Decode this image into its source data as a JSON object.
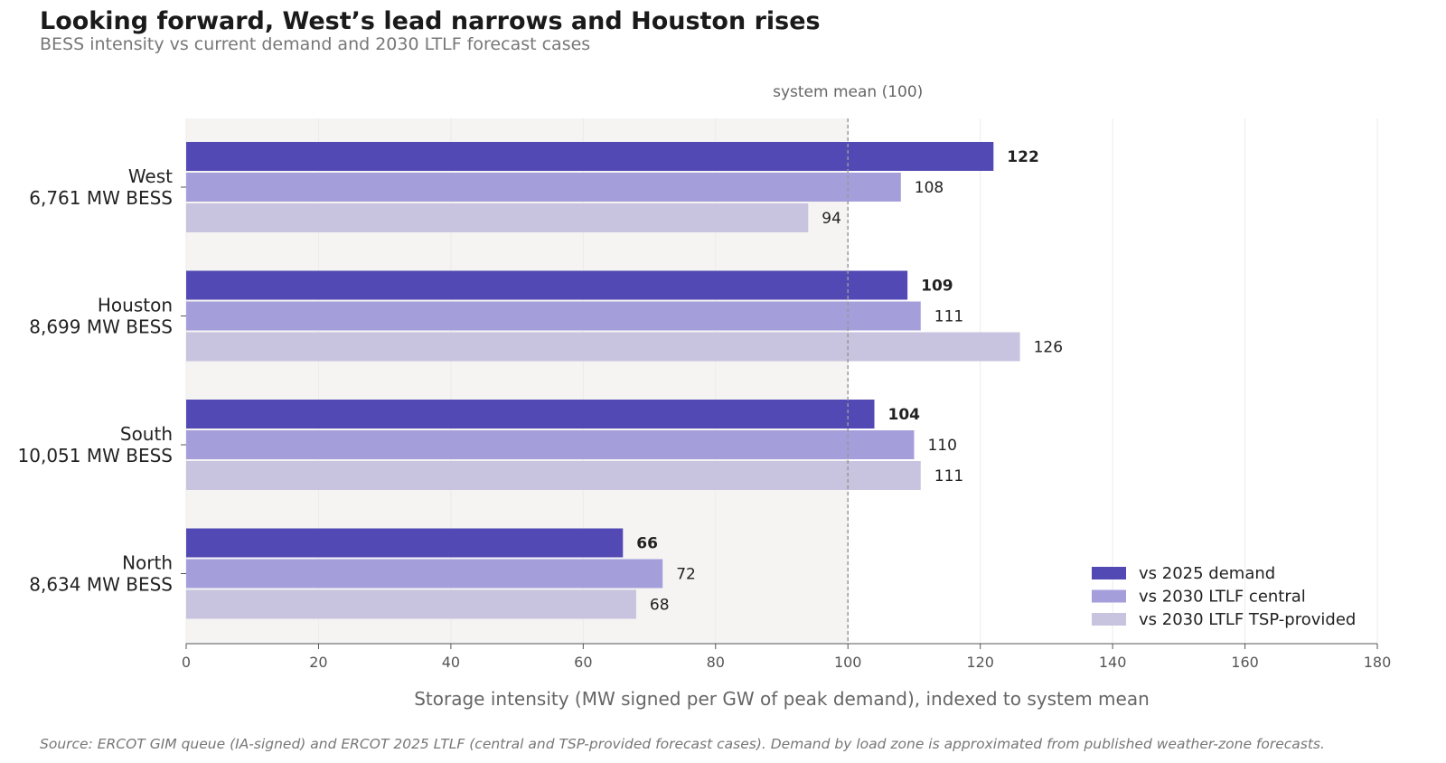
{
  "header": {
    "title": "Looking forward, West’s lead narrows and Houston rises",
    "subtitle": "BESS intensity vs current demand and 2030 LTLF forecast cases"
  },
  "footer": {
    "source": "Source: ERCOT GIM queue (IA-signed) and ERCOT 2025 LTLF (central and TSP-provided forecast cases). Demand by load zone is approximated from published weather-zone forecasts."
  },
  "colors": {
    "plot_bg_shaded": "#f5f4f3",
    "series": [
      "#5249b5",
      "#a49fdb",
      "#c8c3de"
    ]
  },
  "chart_data": {
    "type": "bar",
    "orientation": "horizontal",
    "title": "Looking forward, West’s lead narrows and Houston rises",
    "subtitle": "BESS intensity vs current demand and 2030 LTLF forecast cases",
    "xlabel": "Storage intensity (MW signed per GW of peak demand), indexed to system mean",
    "ylabel": "",
    "xlim": [
      0,
      180
    ],
    "xticks": [
      "0",
      "20",
      "40",
      "60",
      "80",
      "100",
      "120",
      "140",
      "160",
      "180"
    ],
    "categories": [
      {
        "name": "West",
        "detail": "6,761 MW BESS"
      },
      {
        "name": "Houston",
        "detail": "8,699 MW BESS"
      },
      {
        "name": "South",
        "detail": "10,051 MW BESS"
      },
      {
        "name": "North",
        "detail": "8,634 MW BESS"
      }
    ],
    "series": [
      {
        "name": "vs 2025 demand",
        "values": [
          122,
          109,
          104,
          66
        ],
        "bold_labels": true
      },
      {
        "name": "vs 2030 LTLF central",
        "values": [
          108,
          111,
          110,
          72
        ],
        "bold_labels": false
      },
      {
        "name": "vs 2030 LTLF TSP-provided",
        "values": [
          94,
          126,
          111,
          68
        ],
        "bold_labels": false
      }
    ],
    "reference_line": {
      "value": 100,
      "label": "system mean (100)",
      "style": "dashed"
    },
    "shaded_region": [
      0,
      100
    ],
    "grid": {
      "x": true,
      "y": false
    },
    "legend_position": "lower-right"
  }
}
